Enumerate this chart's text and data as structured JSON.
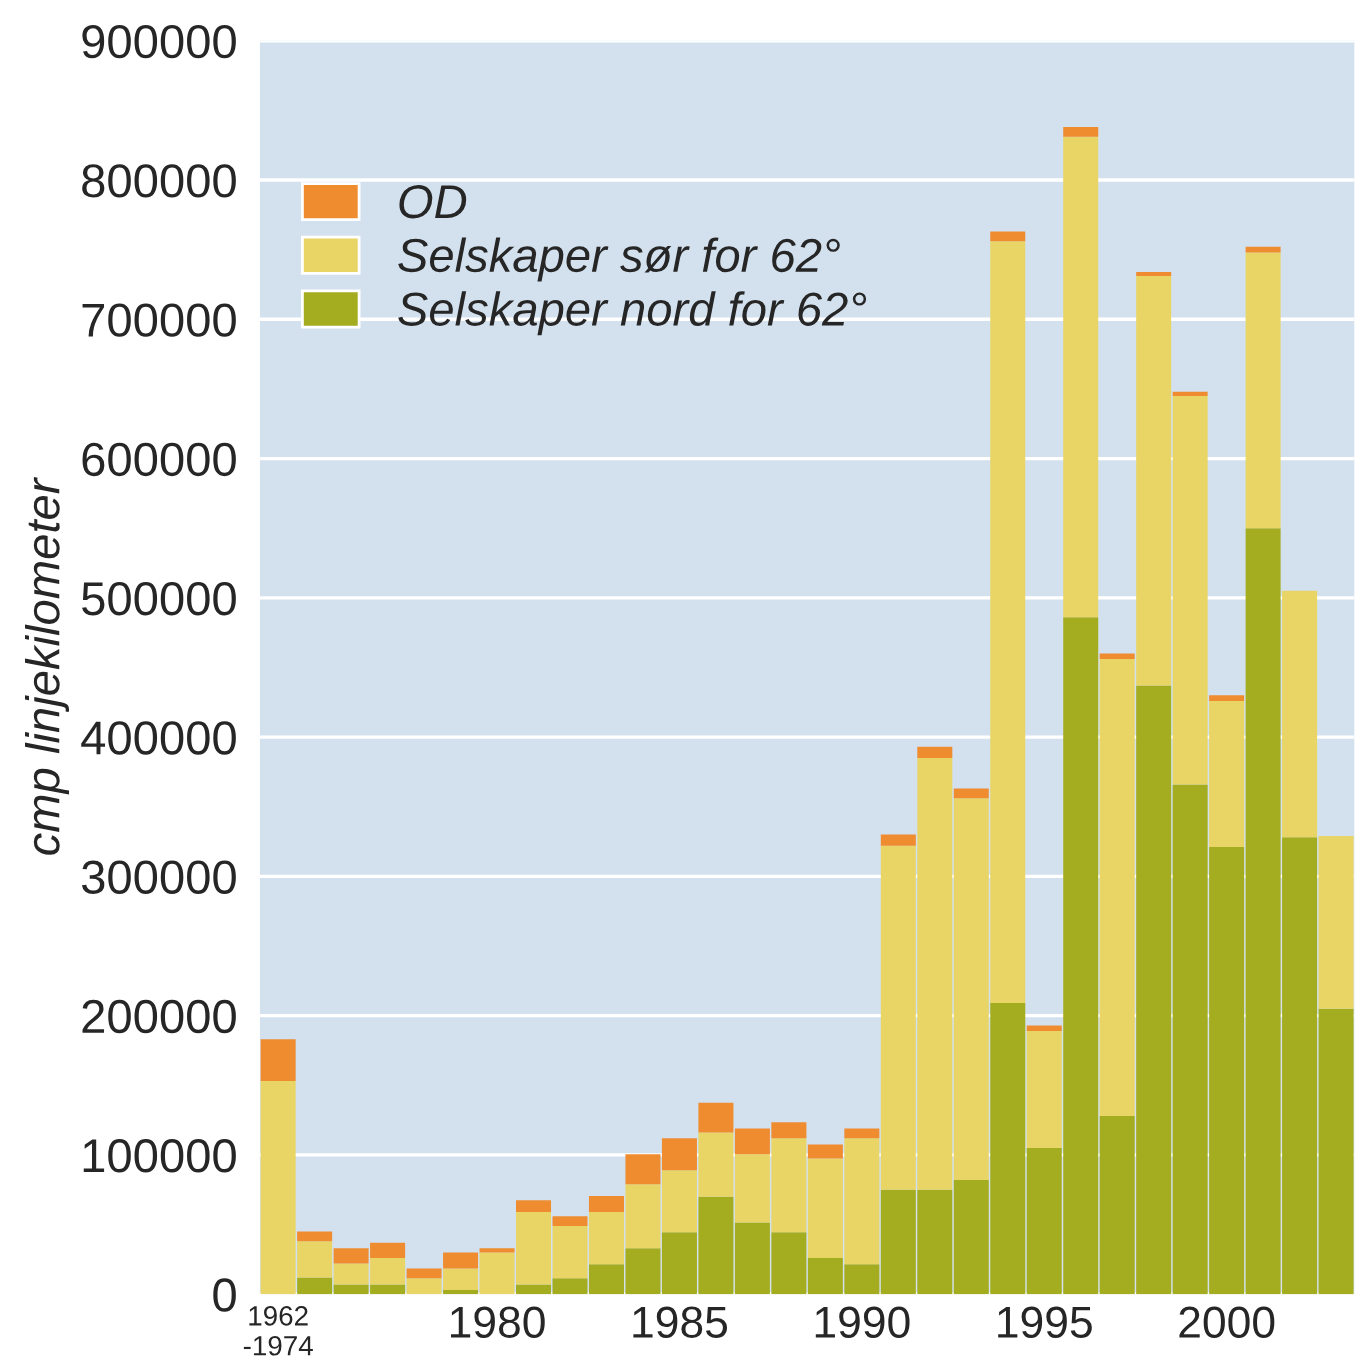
{
  "chart_data": {
    "type": "bar",
    "stacked": true,
    "ylabel": "cmp linjekilometer",
    "categories": [
      "1962\n-1974",
      null,
      null,
      null,
      null,
      null,
      "1980",
      null,
      null,
      null,
      null,
      "1985",
      null,
      null,
      null,
      null,
      "1990",
      null,
      null,
      null,
      null,
      "1995",
      null,
      null,
      null,
      null,
      "2000",
      null,
      null,
      null
    ],
    "series": [
      {
        "name": "Selskaper nord for 62°",
        "color": "#a4ad20",
        "values": [
          0,
          12000,
          7000,
          7000,
          0,
          3000,
          0,
          7000,
          11500,
          21500,
          33000,
          44500,
          70000,
          51500,
          44500,
          26000,
          21500,
          75000,
          75000,
          82000,
          209000,
          105000,
          486000,
          128000,
          437000,
          366000,
          321000,
          550000,
          328000,
          205000
        ]
      },
      {
        "name": "Selskaper sør for 62°",
        "color": "#e9d566",
        "values": [
          153000,
          26000,
          15000,
          19000,
          11500,
          15500,
          30000,
          52000,
          37500,
          37500,
          46000,
          44500,
          46000,
          49000,
          67500,
          71500,
          90500,
          247000,
          310000,
          274000,
          547000,
          84000,
          345000,
          328000,
          294000,
          279000,
          105000,
          198000,
          177000,
          124000
        ]
      },
      {
        "name": "OD",
        "color": "#ef8c30",
        "values": [
          30000,
          7000,
          11000,
          11000,
          7000,
          11500,
          3000,
          8500,
          7000,
          11500,
          21500,
          23000,
          21500,
          18500,
          11500,
          10000,
          7000,
          8000,
          8000,
          7000,
          7000,
          4000,
          7000,
          4000,
          3000,
          3000,
          4000,
          4000,
          0,
          0
        ]
      }
    ],
    "ylim": [
      0,
      900000
    ],
    "yticks": [
      0,
      100000,
      200000,
      300000,
      400000,
      500000,
      600000,
      700000,
      800000,
      900000
    ],
    "grid": "y",
    "legend": "top left"
  }
}
